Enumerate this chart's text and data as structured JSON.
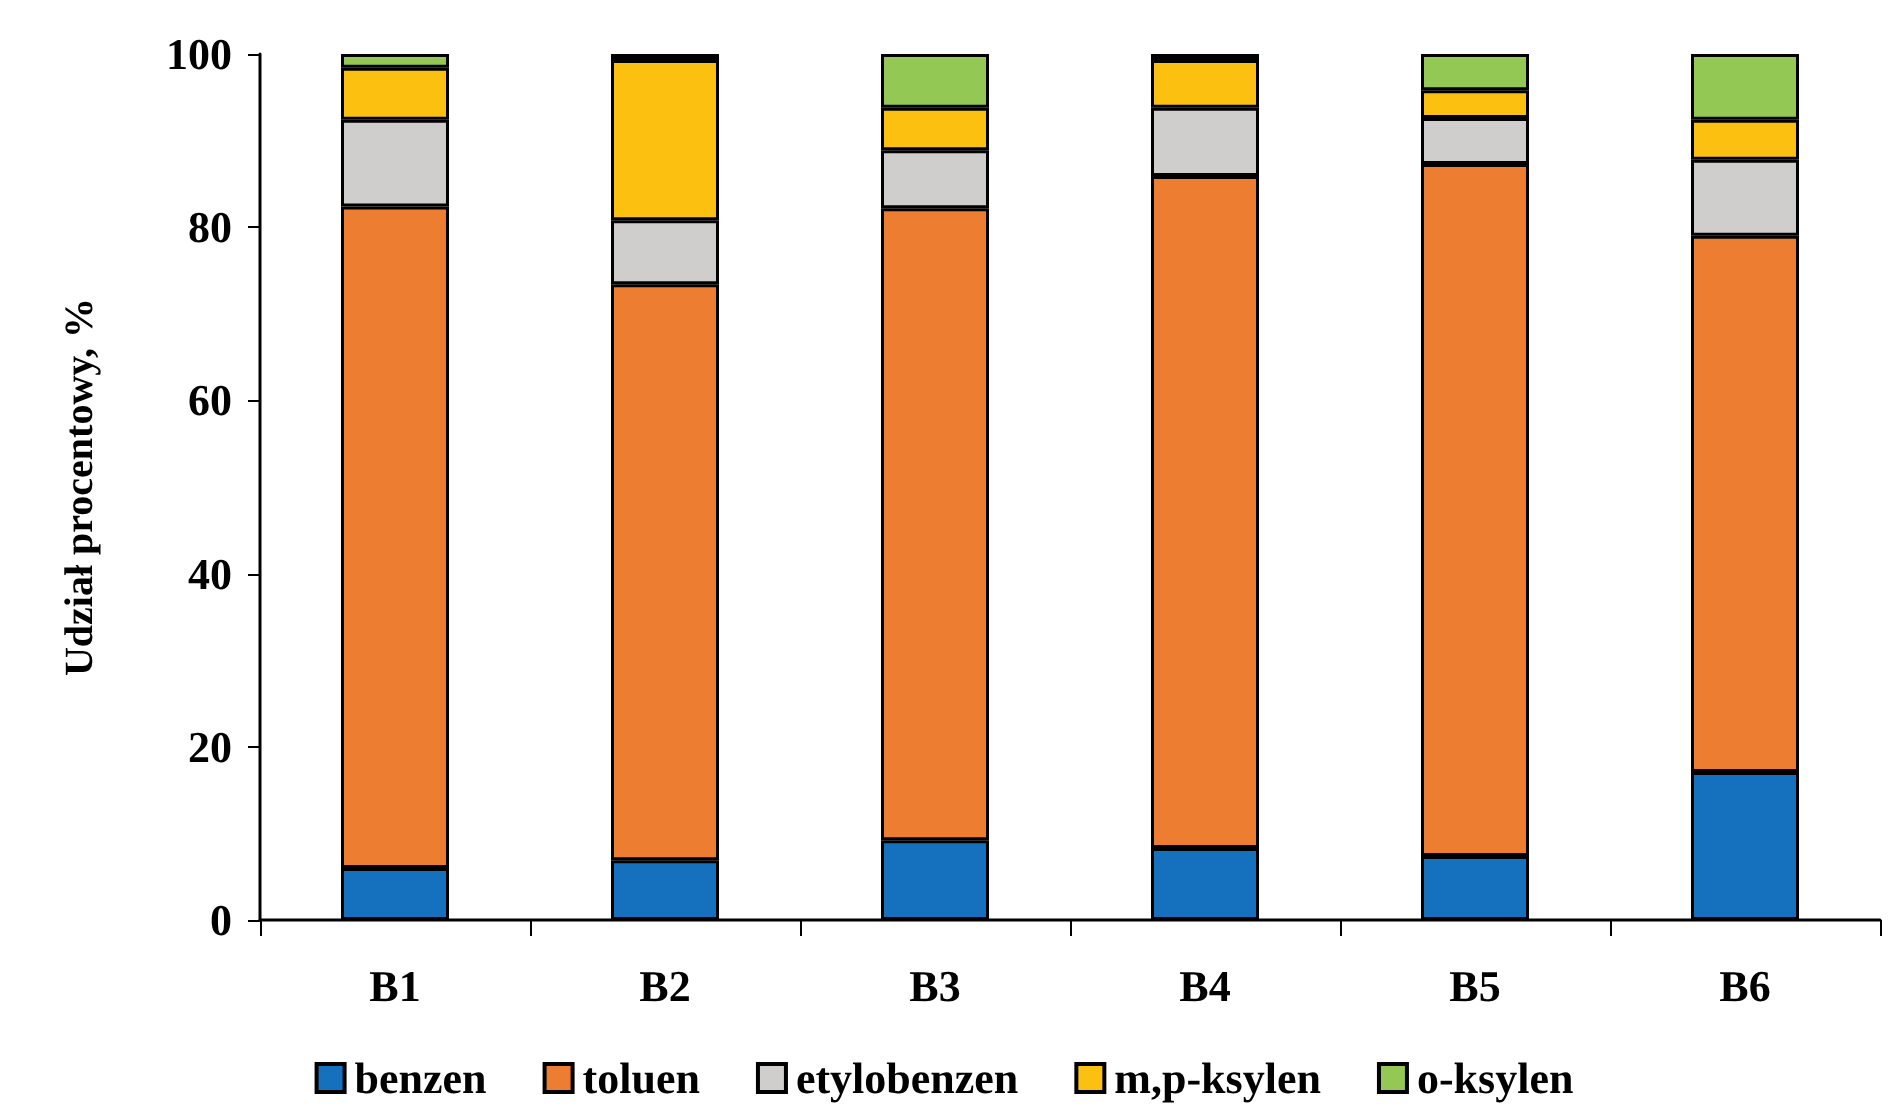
{
  "chart_data": {
    "type": "bar",
    "stacked": true,
    "ylabel": "Udział procentowy, %",
    "categories": [
      "B1",
      "B2",
      "B3",
      "B4",
      "B5",
      "B6"
    ],
    "series": [
      {
        "name": "benzen",
        "color": "#1570bd",
        "values": [
          6.0,
          6.9,
          9.2,
          8.3,
          7.4,
          17.1
        ]
      },
      {
        "name": "toluen",
        "color": "#ed7d31",
        "values": [
          76.4,
          66.5,
          73.0,
          77.6,
          79.9,
          61.9
        ]
      },
      {
        "name": "etylobenzen",
        "color": "#d0cecc",
        "values": [
          10.0,
          7.4,
          6.7,
          7.9,
          5.3,
          8.8
        ]
      },
      {
        "name": "m,p-ksylen",
        "color": "#fcc010",
        "values": [
          6.0,
          18.5,
          4.9,
          5.5,
          3.2,
          4.6
        ]
      },
      {
        "name": "o-ksylen",
        "color": "#92c853",
        "values": [
          1.6,
          0.7,
          6.2,
          0.7,
          4.2,
          7.6
        ]
      }
    ],
    "ylim": [
      0,
      100
    ],
    "yticks": [
      0,
      20,
      40,
      60,
      80,
      100
    ],
    "grid": false,
    "legend": "bottom"
  }
}
